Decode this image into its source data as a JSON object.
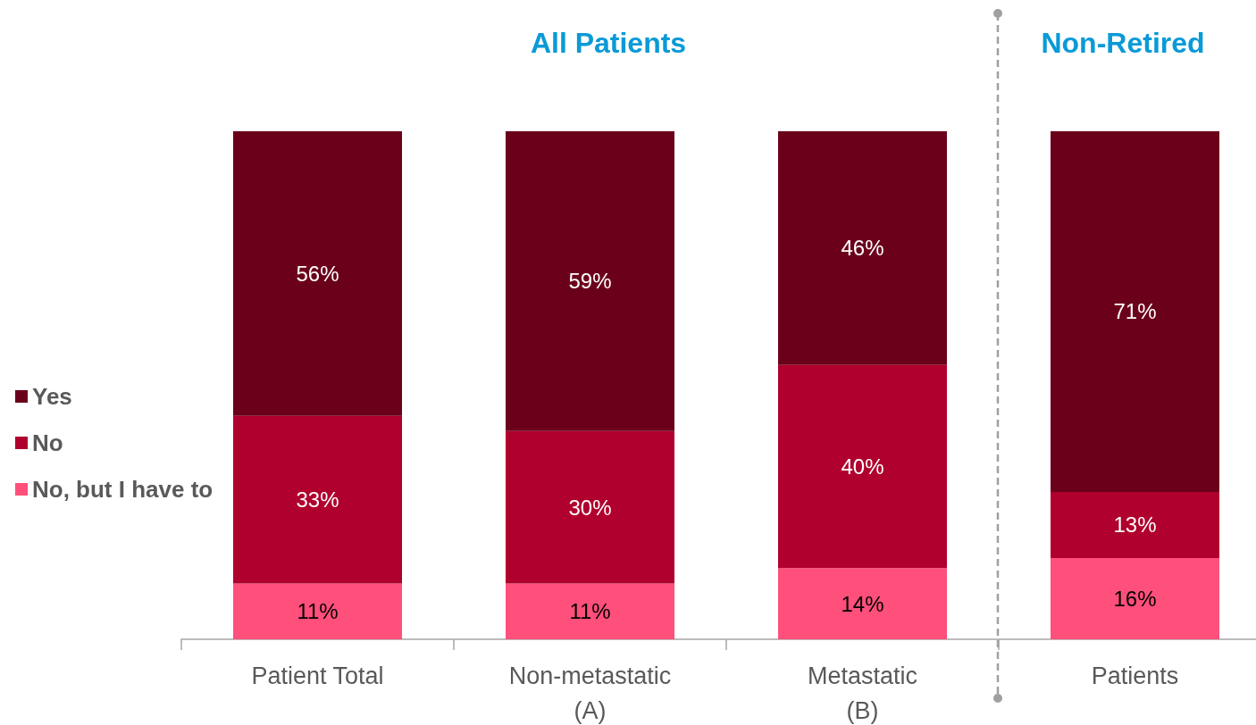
{
  "chart_data": {
    "type": "bar",
    "stacked": true,
    "annotations": [
      "All Patients",
      "Non-Retired"
    ],
    "categories": [
      "Patient Total",
      "Non-metastatic\n(A)",
      "Metastatic\n(B)",
      "Patients"
    ],
    "series": [
      {
        "name": "No, but I have to",
        "color": "#ff4f7b",
        "values": [
          11,
          11,
          14,
          16
        ],
        "value_labels": [
          "11%",
          "11%",
          "14%",
          "16%"
        ]
      },
      {
        "name": "No",
        "color": "#b0002d",
        "values": [
          33,
          30,
          40,
          13
        ],
        "value_labels": [
          "33%",
          "30%",
          "40%",
          "13%"
        ]
      },
      {
        "name": "Yes",
        "color": "#6b001b",
        "values": [
          56,
          59,
          46,
          71
        ],
        "value_labels": [
          "56%",
          "59%",
          "46%",
          "71%"
        ]
      }
    ],
    "legend": "left",
    "tick_labels": "x"
  }
}
